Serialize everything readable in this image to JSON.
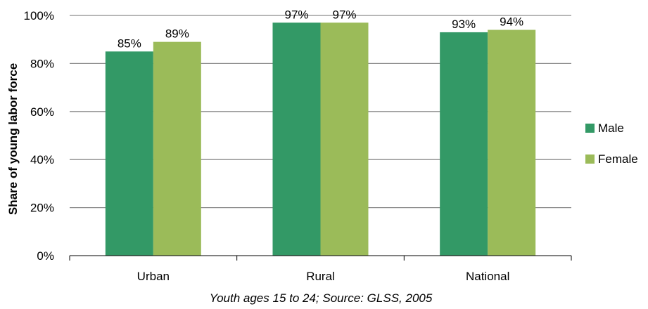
{
  "chart_data": {
    "type": "bar",
    "categories": [
      "Urban",
      "Rural",
      "National"
    ],
    "series": [
      {
        "name": "Male",
        "values": [
          85,
          97,
          93
        ],
        "labels": [
          "85%",
          "97%",
          "93%"
        ],
        "color": "#339966"
      },
      {
        "name": "Female",
        "values": [
          89,
          97,
          94
        ],
        "labels": [
          "89%",
          "97%",
          "94%"
        ],
        "color": "#9BBB59"
      }
    ],
    "ylabel": "Share of young labor force",
    "xlabel": "Youth ages 15 to 24; Source: GLSS, 2005",
    "ylim": [
      0,
      100
    ],
    "yticks": [
      0,
      20,
      40,
      60,
      80,
      100
    ],
    "ytick_labels": [
      "0%",
      "20%",
      "40%",
      "60%",
      "80%",
      "100%"
    ],
    "grid": true,
    "legend_position": "right"
  }
}
